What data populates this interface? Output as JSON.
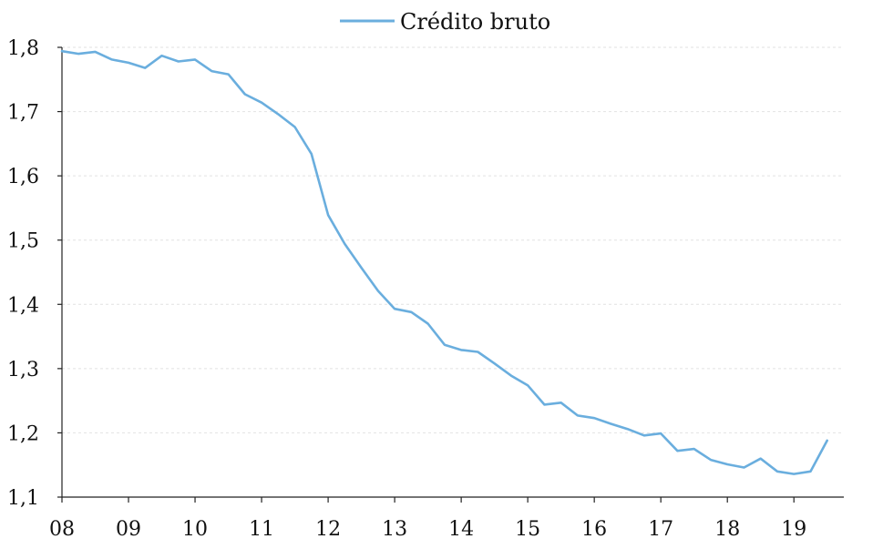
{
  "chart_data": {
    "type": "line",
    "title": "",
    "xlabel": "",
    "ylabel": "",
    "ylim": [
      1.1,
      1.8
    ],
    "yticks": [
      1.1,
      1.2,
      1.3,
      1.4,
      1.5,
      1.6,
      1.7,
      1.8
    ],
    "ytick_labels": [
      "1,1",
      "1,2",
      "1,3",
      "1,4",
      "1,5",
      "1,6",
      "1,7",
      "1,8"
    ],
    "xlim": [
      2008.0,
      2019.75
    ],
    "xticks": [
      2008,
      2009,
      2010,
      2011,
      2012,
      2013,
      2014,
      2015,
      2016,
      2017,
      2018,
      2019
    ],
    "xtick_labels": [
      "08",
      "09",
      "10",
      "11",
      "12",
      "13",
      "14",
      "15",
      "16",
      "17",
      "18",
      "19"
    ],
    "grid": true,
    "legend_position": "top-center",
    "series": [
      {
        "name": "Crédito bruto",
        "color": "#6aaede",
        "x": [
          2008.0,
          2008.25,
          2008.5,
          2008.75,
          2009.0,
          2009.25,
          2009.5,
          2009.75,
          2010.0,
          2010.25,
          2010.5,
          2010.75,
          2011.0,
          2011.25,
          2011.5,
          2011.75,
          2012.0,
          2012.25,
          2012.5,
          2012.75,
          2013.0,
          2013.25,
          2013.5,
          2013.75,
          2014.0,
          2014.25,
          2014.5,
          2014.75,
          2015.0,
          2015.25,
          2015.5,
          2015.75,
          2016.0,
          2016.25,
          2016.5,
          2016.75,
          2017.0,
          2017.25,
          2017.5,
          2017.75,
          2018.0,
          2018.25,
          2018.5,
          2018.75,
          2019.0,
          2019.25,
          2019.5
        ],
        "values": [
          1.794,
          1.79,
          1.793,
          1.781,
          1.776,
          1.768,
          1.787,
          1.778,
          1.781,
          1.763,
          1.758,
          1.727,
          1.714,
          1.696,
          1.676,
          1.634,
          1.539,
          1.494,
          1.457,
          1.421,
          1.393,
          1.388,
          1.37,
          1.337,
          1.329,
          1.326,
          1.308,
          1.289,
          1.274,
          1.244,
          1.247,
          1.227,
          1.223,
          1.214,
          1.206,
          1.196,
          1.199,
          1.172,
          1.175,
          1.158,
          1.151,
          1.146,
          1.16,
          1.14,
          1.136,
          1.14,
          1.188
        ]
      }
    ]
  }
}
